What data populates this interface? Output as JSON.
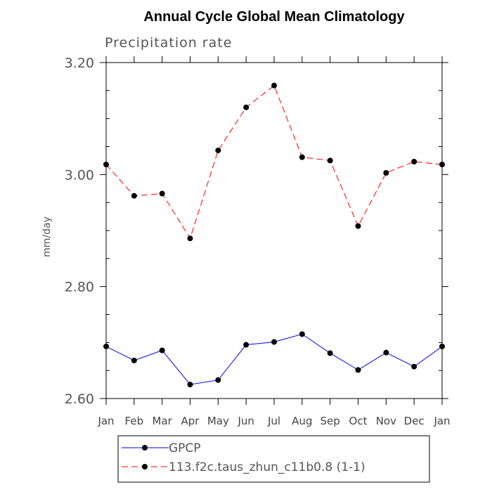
{
  "chart_data": {
    "type": "line",
    "title": "Annual Cycle Global Mean Climatology",
    "subtitle": "Precipitation rate",
    "xlabel": "",
    "ylabel": "mm/day",
    "categories": [
      "Jan",
      "Feb",
      "Mar",
      "Apr",
      "May",
      "Jun",
      "Jul",
      "Aug",
      "Sep",
      "Oct",
      "Nov",
      "Dec",
      "Jan"
    ],
    "ylim": [
      2.6,
      3.2
    ],
    "yticks": [
      "2.60",
      "2.80",
      "3.00",
      "3.20"
    ],
    "grid": false,
    "legend_position": "bottom",
    "series": [
      {
        "name": "GPCP",
        "color": "#0000ff",
        "line_style": "solid",
        "marker": "filled-circle",
        "values": [
          2.693,
          2.668,
          2.686,
          2.625,
          2.633,
          2.696,
          2.701,
          2.715,
          2.681,
          2.651,
          2.682,
          2.657,
          2.693
        ]
      },
      {
        "name": "113.f2c.taus_zhun_c11b0.8 (1-1)",
        "color": "#ff0000",
        "line_style": "dashed",
        "marker": "filled-circle",
        "values": [
          3.018,
          2.962,
          2.966,
          2.886,
          3.043,
          3.12,
          3.159,
          3.031,
          3.025,
          2.908,
          3.003,
          3.023,
          3.018
        ]
      }
    ]
  }
}
